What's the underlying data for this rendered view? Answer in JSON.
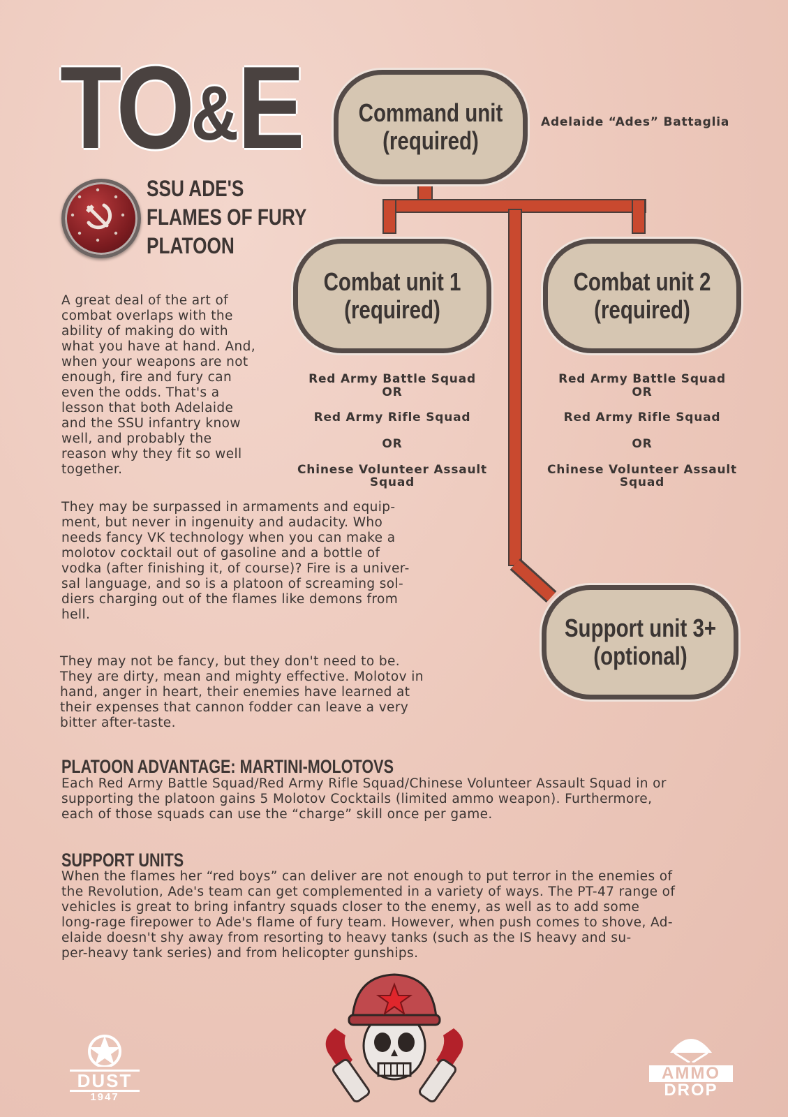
{
  "title": {
    "part1": "TO",
    "amp": "&",
    "part2": "E"
  },
  "platoon_name": "SSU ADE'S\nFLAMES OF FURY\nPLATOON",
  "intro_paragraphs": [
    "A great deal of the art of\ncombat overlaps with the\nability of making do with\nwhat you have at hand. And,\nwhen your weapons are not\nenough, fire and fury can\neven the odds. That's a\nlesson that both Adelaide\nand the SSU infantry know\nwell, and probably the\nreason why they fit so well\ntogether.",
    "They may be surpassed in armaments and equip-\nment, but never in ingenuity and audacity. Who\nneeds fancy VK technology when you can make a\nmolotov cocktail out of gasoline and a bottle of\nvodka (after finishing it, of course)? Fire is a univer-\nsal language, and so is a platoon of screaming sol-\ndiers charging out of the flames like demons from\nhell.",
    "They may not be fancy, but they don't need to be.\nThey are dirty, mean and mighty effective. Molotov in\nhand, anger in heart, their enemies have learned at\ntheir expenses that cannon fodder can leave a very\nbitter after-taste."
  ],
  "org_chart": {
    "command": {
      "label": "Command unit\n(required)",
      "detail": "Adelaide “Ades” Battaglia"
    },
    "combat1": {
      "label": "Combat unit 1\n(required)"
    },
    "combat2": {
      "label": "Combat unit 2\n(required)"
    },
    "support": {
      "label": "Support unit 3+\n(optional)"
    },
    "combat_options": {
      "opt1": "Red Army Battle Squad",
      "or1": "OR",
      "opt2": "Red Army Rifle Squad",
      "or2": "OR",
      "opt3": "Chinese Volunteer Assault\nSquad"
    }
  },
  "advantage": {
    "heading": "PLATOON ADVANTAGE: MARTINI-MOLOTOVS",
    "text": "Each Red Army Battle Squad/Red Army Rifle Squad/Chinese Volunteer Assault Squad in or\nsupporting the platoon gains 5 Molotov Cocktails (limited ammo weapon). Furthermore,\neach of those squads can use the “charge” skill once per game."
  },
  "support_units": {
    "heading": "SUPPORT UNITS",
    "text": "When the flames her “red boys” can deliver are not enough to put terror in the enemies of\nthe Revolution, Ade's team can get complemented in a variety of ways. The PT-47 range of\nvehicles is great to bring infantry squads closer to the enemy, as well as to add some\nlong-rage firepower to Ade's flame of fury team. However, when push comes to shove, Ad-\nelaide doesn't shy away from resorting to heavy tanks (such as the IS heavy and su-\nper-heavy tank series) and from helicopter gunships."
  },
  "logos": {
    "left": {
      "name": "DUST",
      "year": "1947"
    },
    "right": {
      "line1": "AMMO",
      "line2": "DROP"
    }
  },
  "colors": {
    "background": "#ecc7ba",
    "connector": "#c9492f",
    "box_fill": "#d6c6b2",
    "box_border": "#544a47",
    "text": "#3b3533"
  }
}
